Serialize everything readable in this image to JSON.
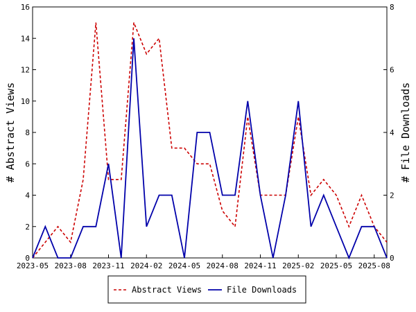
{
  "chart_data": {
    "type": "line",
    "x": [
      "2023-05",
      "2023-06",
      "2023-07",
      "2023-08",
      "2023-09",
      "2023-10",
      "2023-11",
      "2023-12",
      "2024-01",
      "2024-02",
      "2024-03",
      "2024-04",
      "2024-05",
      "2024-06",
      "2024-07",
      "2024-08",
      "2024-09",
      "2024-10",
      "2024-11",
      "2024-12",
      "2025-01",
      "2025-02",
      "2025-03",
      "2025-04",
      "2025-05",
      "2025-06",
      "2025-07",
      "2025-08",
      "2025-09"
    ],
    "x_tick_labels": [
      "2023-05",
      "2023-08",
      "2023-11",
      "2024-02",
      "2024-05",
      "2024-08",
      "2024-11",
      "2025-02",
      "2025-05",
      "2025-08"
    ],
    "x_tick_positions": [
      0,
      3,
      6,
      9,
      12,
      15,
      18,
      21,
      24,
      27
    ],
    "series": [
      {
        "name": "Abstract Views",
        "axis": "left",
        "color": "#cc0000",
        "style": "dashed",
        "values": [
          0,
          1,
          2,
          1,
          5,
          15,
          5,
          5,
          15,
          13,
          14,
          7,
          7,
          6,
          6,
          3,
          2,
          9,
          4,
          4,
          4,
          9,
          4,
          5,
          4,
          2,
          4,
          2,
          1
        ]
      },
      {
        "name": "File Downloads",
        "axis": "right",
        "color": "#0000aa",
        "style": "solid",
        "values": [
          0,
          1,
          0,
          0,
          1,
          1,
          3,
          0,
          7,
          1,
          2,
          2,
          0,
          4,
          4,
          2,
          2,
          5,
          2,
          0,
          2,
          5,
          1,
          2,
          1,
          0,
          1,
          1,
          0
        ]
      }
    ],
    "ylabel": "# Abstract Views",
    "y2label": "# File Downloads",
    "ylim": [
      0,
      16
    ],
    "y2lim": [
      0,
      8
    ],
    "yticks": [
      "0",
      "2",
      "4",
      "6",
      "8",
      "10",
      "12",
      "14",
      "16"
    ],
    "y2ticks": [
      "0",
      "2",
      "4",
      "6",
      "8"
    ],
    "legend_position": "bottom-center",
    "grid": false
  }
}
